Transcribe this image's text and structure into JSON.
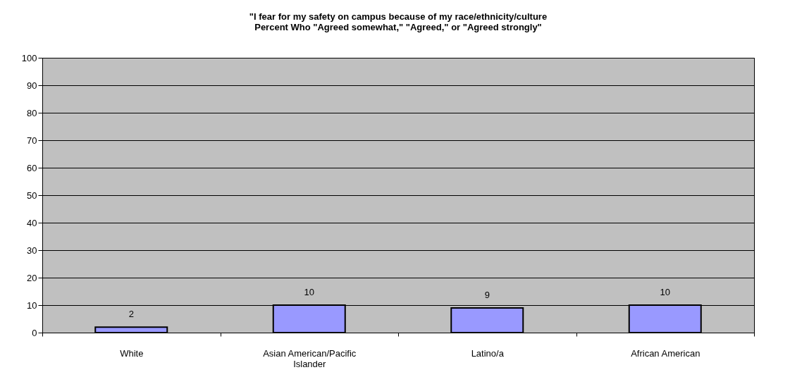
{
  "chart_data": {
    "type": "bar",
    "title": [
      "\"I fear for my safety on campus because of my race/ethnicity/culture",
      "Percent Who \"Agreed somewhat,\" \"Agreed,\" or \"Agreed strongly\""
    ],
    "categories": [
      "White",
      "Asian American/Pacific Islander",
      "Latino/a",
      "African American"
    ],
    "values": [
      2,
      10,
      9,
      10
    ],
    "color": "#9999ff",
    "data_labels": true,
    "ylim": [
      0,
      100
    ],
    "yticks": [
      0,
      10,
      20,
      30,
      40,
      50,
      60,
      70,
      80,
      90,
      100
    ],
    "grid": "y"
  }
}
